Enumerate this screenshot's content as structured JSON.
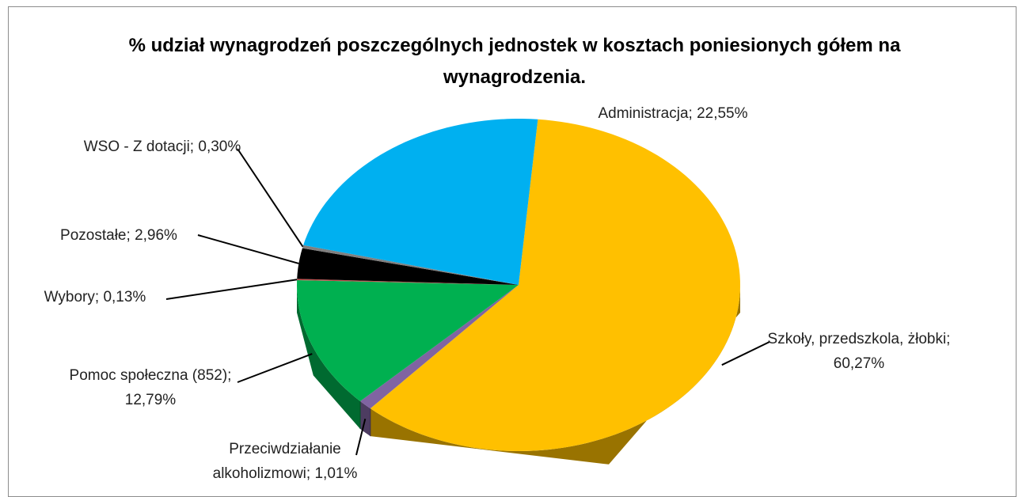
{
  "chart_data": {
    "type": "pie",
    "title": "% udział wynagrodzeń poszczególnych jednostek w kosztach poniesionych gółem na wynagrodzenia.",
    "categories": [
      "Szkoły, przedszkola, żłobki;",
      "Przeciwdziałanie alkoholizmowi;",
      "Pomoc społeczna (852);",
      "Wybory;",
      "Pozostałe;",
      "WSO - Z dotacji;",
      "Administracja;"
    ],
    "values": [
      60.27,
      1.01,
      12.79,
      0.13,
      2.96,
      0.3,
      22.55
    ],
    "value_labels": [
      "60,27%",
      "1,01%",
      "12,79%",
      "0,13%",
      "2,96%",
      "0,30%",
      "22,55%"
    ],
    "colors": [
      "#ffc000",
      "#8064a2",
      "#00b050",
      "#c0504d",
      "#000000",
      "#7f7f7f",
      "#00b0f0"
    ]
  }
}
